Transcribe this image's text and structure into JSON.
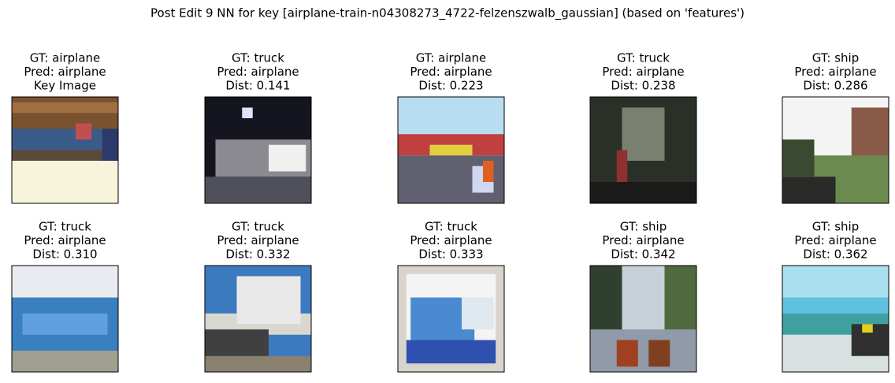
{
  "figure": {
    "title": "Post Edit 9 NN for key [airplane-train-n04308273_4722-felzenszwalb_gaussian] (based on 'features')",
    "panels": [
      {
        "lines": [
          "GT: airplane",
          "Pred: airplane",
          "Key Image"
        ]
      },
      {
        "lines": [
          "GT: truck",
          "Pred: airplane",
          "Dist: 0.141"
        ]
      },
      {
        "lines": [
          "GT: airplane",
          "Pred: airplane",
          "Dist: 0.223"
        ]
      },
      {
        "lines": [
          "GT: truck",
          "Pred: airplane",
          "Dist: 0.238"
        ]
      },
      {
        "lines": [
          "GT: ship",
          "Pred: airplane",
          "Dist: 0.286"
        ]
      },
      {
        "lines": [
          "GT: truck",
          "Pred: airplane",
          "Dist: 0.310"
        ]
      },
      {
        "lines": [
          "GT: truck",
          "Pred: airplane",
          "Dist: 0.332"
        ]
      },
      {
        "lines": [
          "GT: truck",
          "Pred: airplane",
          "Dist: 0.333"
        ]
      },
      {
        "lines": [
          "GT: ship",
          "Pred: airplane",
          "Dist: 0.342"
        ]
      },
      {
        "lines": [
          "GT: ship",
          "Pred: airplane",
          "Dist: 0.362"
        ]
      }
    ]
  }
}
